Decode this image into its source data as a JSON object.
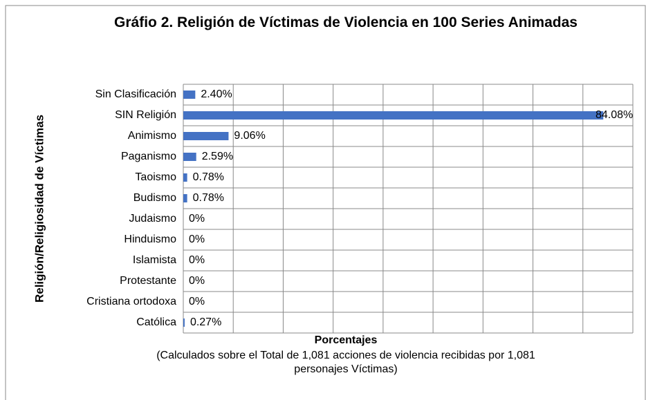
{
  "chart_data": {
    "type": "bar",
    "orientation": "horizontal",
    "title": "Gráfio 2. Religión de Víctimas de Violencia en 100 Series Animadas",
    "x_label": "Porcentajes",
    "x_sublabel": "(Calculados sobre el Total de 1,081 acciones de violencia recibidas por 1,081 personajes Víctimas)",
    "y_label": "Religión/Religiosidad de Víctimas",
    "categories": [
      "Sin Clasificación",
      "SIN Religión",
      "Animismo",
      "Paganismo",
      "Taoismo",
      "Budismo",
      "Judaismo",
      "Hinduismo",
      "Islamista",
      "Protestante",
      "Cristiana ortodoxa",
      "Católica"
    ],
    "values": [
      2.4,
      84.08,
      9.06,
      2.59,
      0.78,
      0.78,
      0,
      0,
      0,
      0,
      0,
      0.27
    ],
    "value_labels": [
      "2.40%",
      "84.08%",
      "9.06%",
      "2.59%",
      "0.78%",
      "0.78%",
      "0%",
      "0%",
      "0%",
      "0%",
      "0%",
      "0.27%"
    ],
    "color": "#4472c4",
    "xlim": [
      0,
      90
    ],
    "xticks": [
      0,
      10,
      20,
      30,
      40,
      50,
      60,
      70,
      80,
      90
    ],
    "grid": true
  }
}
